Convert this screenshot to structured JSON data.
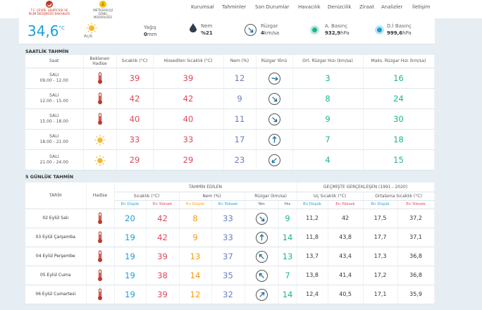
{
  "header": {
    "logo1_text": "T.C. ÇEVRE, ŞEHİRCİLİK VE İKLİM DEĞİŞİKLİĞİ BAKANLIĞI",
    "logo2_text": "METEOROLOJİ GENEL MÜDÜRLÜĞÜ",
    "nav": [
      "Kurumsal",
      "Tahminler",
      "Son Durumlar",
      "Havacılık",
      "Denizcilik",
      "Ziraat",
      "Analizler",
      "İletişim"
    ]
  },
  "current": {
    "temp": "34,6",
    "temp_unit": "°C",
    "sky": "Açık",
    "rain_label": "Yağış",
    "rain_value": "0",
    "rain_unit": "mm",
    "humidity_label": "Nem",
    "humidity_value": "%21",
    "wind_label": "Rüzgar",
    "wind_value": "4",
    "wind_unit": "km/sa",
    "pressure_label": "A. Basınç",
    "pressure_value": "932,9",
    "pressure_unit": "hPa",
    "sea_pressure_label": "D.İ Basınç",
    "sea_pressure_value": "999,6",
    "sea_pressure_unit": "hPa",
    "colors": {
      "pressure_dot": "#20b390",
      "sea_pressure_dot": "#1b9ed8"
    }
  },
  "hourly": {
    "title": "SAATLİK TAHMİN",
    "headers": [
      "Saat",
      "Beklenen Hadise",
      "Sıcaklık (°C)",
      "Hissedilen Sıcaklık (°C)",
      "Nem (%)",
      "Rüzgar Yönü",
      "Ort. Rüzgar Hızı (km/sa)",
      "Maks. Rüzgar Hızı (km/sa)"
    ],
    "rows": [
      {
        "day": "SALI",
        "time": "09.00 - 12.00",
        "icon": "thermometer-hot-icon",
        "temp": "39",
        "feel": "39",
        "hum": "12",
        "wind_dir_deg": 100,
        "avg": "3",
        "max": "16"
      },
      {
        "day": "SALI",
        "time": "12.00 - 15.00",
        "icon": "thermometer-hot-icon",
        "temp": "42",
        "feel": "42",
        "hum": "9",
        "wind_dir_deg": 135,
        "avg": "8",
        "max": "24"
      },
      {
        "day": "SALI",
        "time": "15.00 - 18.00",
        "icon": "thermometer-hot-icon",
        "temp": "40",
        "feel": "40",
        "hum": "11",
        "wind_dir_deg": 135,
        "avg": "9",
        "max": "30"
      },
      {
        "day": "SALI",
        "time": "18.00 - 21.00",
        "icon": "sun-icon",
        "temp": "33",
        "feel": "33",
        "hum": "17",
        "wind_dir_deg": 0,
        "avg": "7",
        "max": "18"
      },
      {
        "day": "SALI",
        "time": "21.00 - 24.00",
        "icon": "sun-icon",
        "temp": "29",
        "feel": "29",
        "hum": "23",
        "wind_dir_deg": 225,
        "avg": "4",
        "max": "15"
      }
    ]
  },
  "daily": {
    "title": "5 GÜNLÜK TAHMİN",
    "group_forecast": "TAHMİN EDİLEN",
    "group_past": "GEÇMİŞTE GERÇEKLEŞEN (1991 - 2020)",
    "h_date": "TARİH",
    "h_event": "Hadise",
    "h_temp": "Sıcaklık (°C)",
    "h_hum": "Nem (%)",
    "h_wind": "Rüzgar (km/sa)",
    "h_extreme": "Uç Sıcaklık (°C)",
    "h_avg": "Ortalama Sıcaklık (°C)",
    "h_min": "En Düşük",
    "h_max": "En Yüksek",
    "h_dir": "Yön",
    "h_speed": "Hız",
    "rows": [
      {
        "date": "02 Eylül Salı",
        "tmin": "20",
        "tmax": "42",
        "hmin": "8",
        "hmax": "33",
        "wind_dir_deg": 135,
        "wspd": "9",
        "xmin": "11,2",
        "xmax": "42",
        "amin": "17,5",
        "amax": "37,2"
      },
      {
        "date": "03 Eylül Çarşamba",
        "tmin": "19",
        "tmax": "42",
        "hmin": "9",
        "hmax": "33",
        "wind_dir_deg": 0,
        "wspd": "14",
        "xmin": "11,8",
        "xmax": "43,8",
        "amin": "17,7",
        "amax": "37,1"
      },
      {
        "date": "04 Eylül Perşembe",
        "tmin": "19",
        "tmax": "39",
        "hmin": "13",
        "hmax": "37",
        "wind_dir_deg": 315,
        "wspd": "13",
        "xmin": "13,7",
        "xmax": "43,4",
        "amin": "17,3",
        "amax": "36,8"
      },
      {
        "date": "05 Eylül Cuma",
        "tmin": "19",
        "tmax": "38",
        "hmin": "14",
        "hmax": "35",
        "wind_dir_deg": 315,
        "wspd": "7",
        "xmin": "13,8",
        "xmax": "41,4",
        "amin": "17,2",
        "amax": "36,8"
      },
      {
        "date": "06 Eylül Cumartesi",
        "tmin": "19",
        "tmax": "39",
        "hmin": "12",
        "hmax": "32",
        "wind_dir_deg": 45,
        "wspd": "14",
        "xmin": "12,4",
        "xmax": "40,5",
        "amin": "17,1",
        "amax": "35,9"
      }
    ]
  }
}
